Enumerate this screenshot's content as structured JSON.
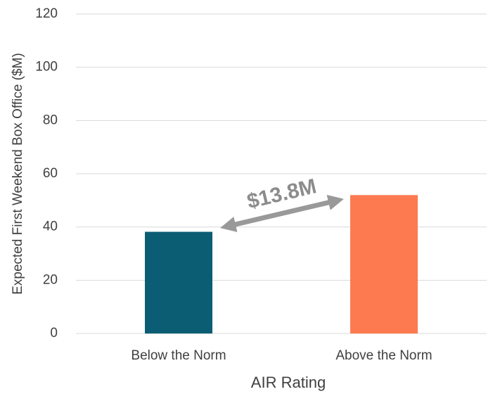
{
  "chart_data": {
    "type": "bar",
    "categories": [
      "Below the Norm",
      "Above the Norm"
    ],
    "values": [
      38.2,
      52
    ],
    "colors": [
      "#0b5d74",
      "#fd7a50"
    ],
    "xlabel": "AIR Rating",
    "ylabel": "Expected First Weekend Box Office ($M)",
    "ylim": [
      0,
      120
    ],
    "yticks": [
      0,
      20,
      40,
      60,
      80,
      100,
      120
    ],
    "grid": true,
    "annotation": "$13.8M"
  }
}
